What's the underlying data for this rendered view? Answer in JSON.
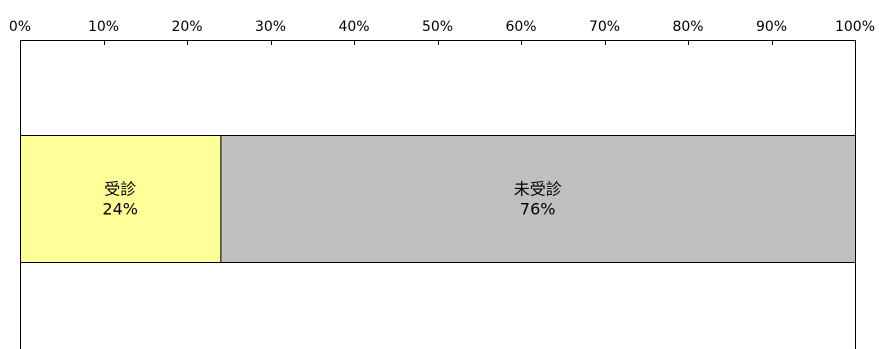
{
  "chart_data": {
    "type": "bar",
    "orientation": "horizontal",
    "stacked": true,
    "normalized": "percent",
    "xlim": [
      0,
      100
    ],
    "x_ticks": [
      0,
      10,
      20,
      30,
      40,
      50,
      60,
      70,
      80,
      90,
      100
    ],
    "x_tick_labels": [
      "0%",
      "10%",
      "20%",
      "30%",
      "40%",
      "50%",
      "60%",
      "70%",
      "80%",
      "90%",
      "100%"
    ],
    "axis_position": "top",
    "grid": false,
    "legend": "none",
    "series": [
      {
        "name": "受診",
        "value": 24,
        "value_label": "24%",
        "color": "#ffff99"
      },
      {
        "name": "未受診",
        "value": 76,
        "value_label": "76%",
        "color": "#c0c0c0"
      }
    ]
  }
}
